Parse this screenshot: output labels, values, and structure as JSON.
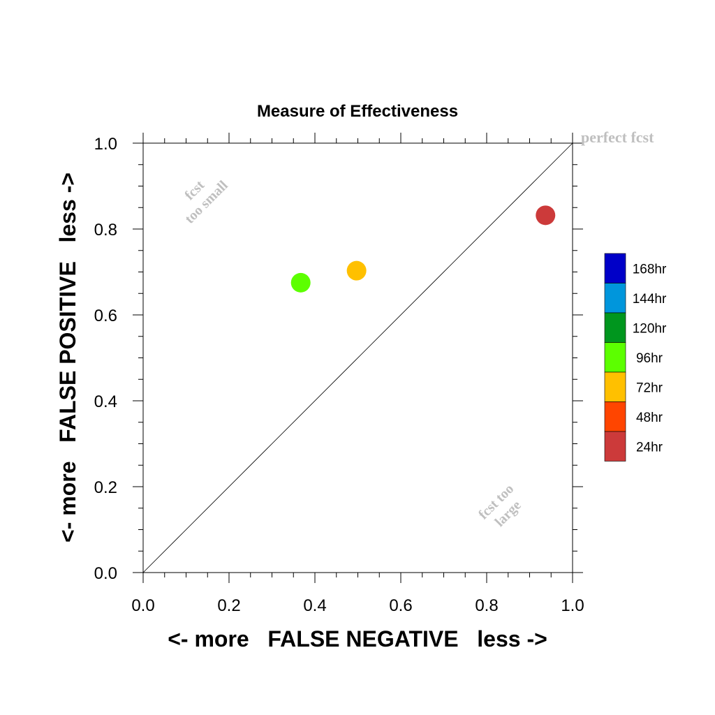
{
  "chart_data": {
    "type": "scatter",
    "title": "Measure of Effectiveness",
    "xlabel": "<- more   FALSE NEGATIVE   less ->",
    "ylabel": "<- more   FALSE POSITIVE   less ->",
    "xlim": [
      0.0,
      1.0
    ],
    "ylim": [
      0.0,
      1.0
    ],
    "x_ticks": [
      "0.0",
      "0.2",
      "0.4",
      "0.6",
      "0.8",
      "1.0"
    ],
    "y_ticks": [
      "0.0",
      "0.2",
      "0.4",
      "0.6",
      "0.8",
      "1.0"
    ],
    "grid": false,
    "reference_line": {
      "from": [
        0.0,
        0.0
      ],
      "to": [
        1.0,
        1.0
      ]
    },
    "annotations": {
      "perfect": "perfect fcst",
      "small_line1": "fcst",
      "small_line2": "too small",
      "large_line1": "fcst too",
      "large_line2": "large"
    },
    "points": [
      {
        "label": "96hr",
        "x": 0.367,
        "y": 0.675,
        "color": "#5cff00"
      },
      {
        "label": "72hr",
        "x": 0.497,
        "y": 0.703,
        "color": "#ffc000"
      },
      {
        "label": "24hr",
        "x": 0.937,
        "y": 0.832,
        "color": "#cc3a3a"
      }
    ],
    "legend": {
      "placement": "right",
      "entries": [
        {
          "label": "168hr",
          "color": "#0000c8"
        },
        {
          "label": "144hr",
          "color": "#0096dc"
        },
        {
          "label": "120hr",
          "color": "#00961e"
        },
        {
          "label": "96hr",
          "color": "#5cff00"
        },
        {
          "label": "72hr",
          "color": "#ffc000"
        },
        {
          "label": "48hr",
          "color": "#ff4500"
        },
        {
          "label": "24hr",
          "color": "#cc3a3a"
        }
      ]
    }
  }
}
